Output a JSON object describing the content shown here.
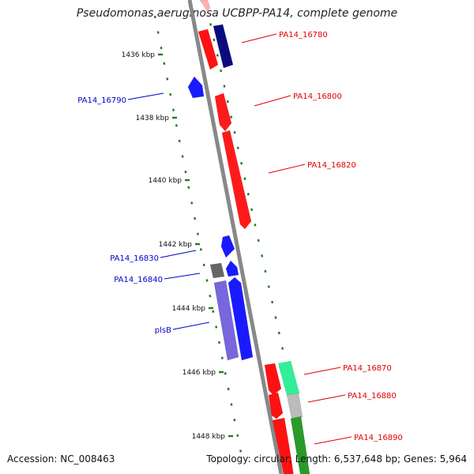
{
  "title": "Pseudomonas aeruginosa UCBPP-PA14, complete genome",
  "accession_label": "Accession: NC_008463",
  "summary_label": "Topology: circular; Length: 6,537,648 bp; Genes: 5,964",
  "colors": {
    "backbone": "#888888",
    "tick": "#1e7d1e",
    "forward_label": "#e00000",
    "reverse_label": "#0000cc"
  },
  "chart_data": {
    "type": "diagram",
    "kbp_ticks": [
      "1436 kbp",
      "1438 kbp",
      "1440 kbp",
      "1442 kbp",
      "1444 kbp",
      "1446 kbp",
      "1448 kbp"
    ],
    "gene_labels": [
      {
        "id": "PA14_16780",
        "strand": "forward"
      },
      {
        "id": "PA14_16790",
        "strand": "reverse"
      },
      {
        "id": "PA14_16800",
        "strand": "forward"
      },
      {
        "id": "PA14_16820",
        "strand": "forward"
      },
      {
        "id": "PA14_16830",
        "strand": "reverse"
      },
      {
        "id": "PA14_16840",
        "strand": "reverse"
      },
      {
        "id": "plsB",
        "strand": "reverse"
      },
      {
        "id": "PA14_16870",
        "strand": "forward"
      },
      {
        "id": "PA14_16880",
        "strand": "forward"
      },
      {
        "id": "PA14_16890",
        "strand": "forward"
      }
    ]
  }
}
